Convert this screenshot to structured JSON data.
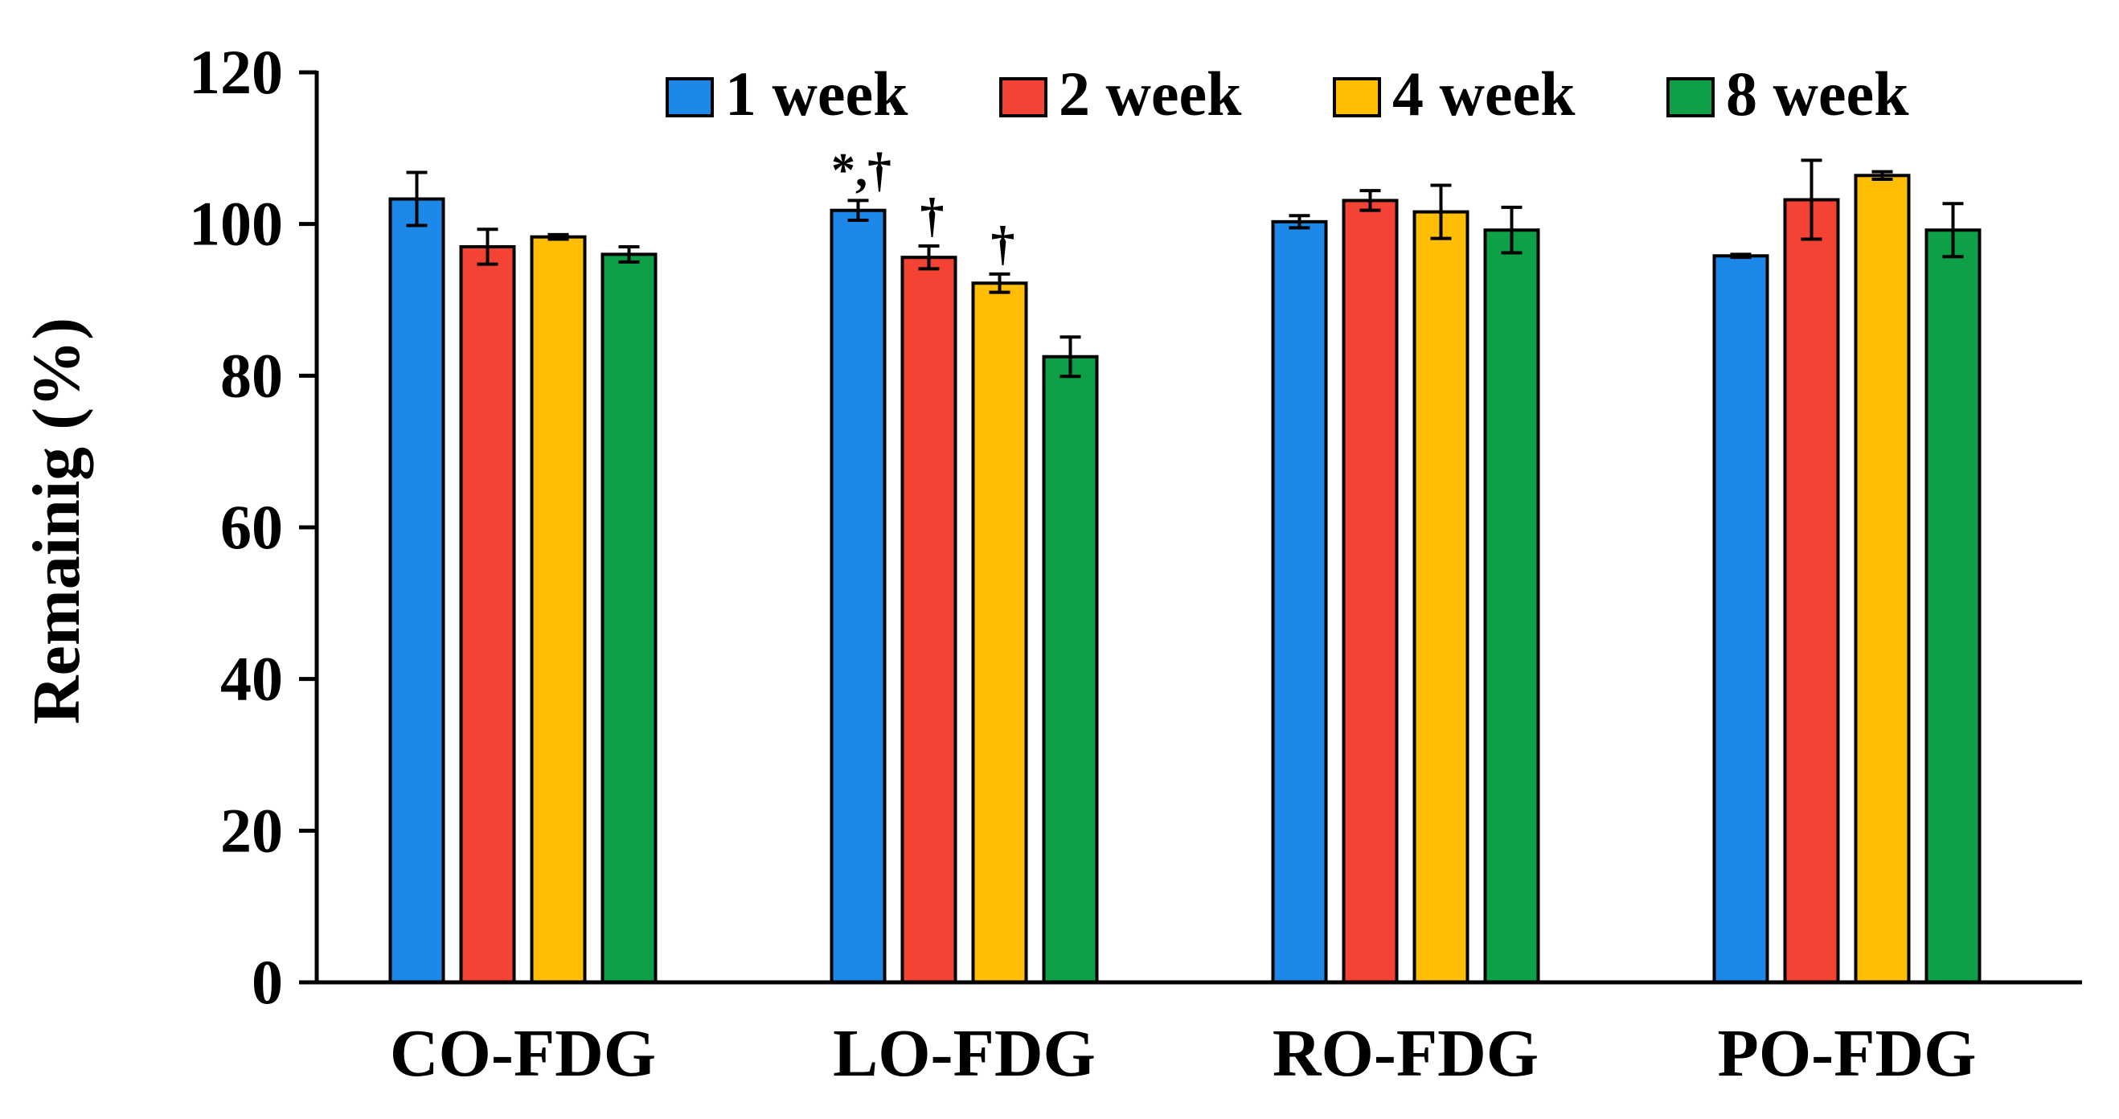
{
  "chart_data": {
    "type": "bar",
    "title": "",
    "xlabel": "",
    "ylabel": "Remainig (%)",
    "ylim": [
      0,
      120
    ],
    "yticks": [
      0,
      20,
      40,
      60,
      80,
      100,
      120
    ],
    "grid": false,
    "legend_position": "top-right",
    "categories": [
      "CO-FDG",
      "LO-FDG",
      "RO-FDG",
      "PO-FDG"
    ],
    "series": [
      {
        "name": "1 week",
        "color": "#1E88E8",
        "values": [
          103.3,
          101.8,
          100.3,
          95.8
        ],
        "errors": [
          3.5,
          1.3,
          0.8,
          0.2
        ]
      },
      {
        "name": "2 week",
        "color": "#F44235",
        "values": [
          97.0,
          95.6,
          103.1,
          103.2
        ],
        "errors": [
          2.3,
          1.5,
          1.3,
          5.2
        ]
      },
      {
        "name": "4 week",
        "color": "#FFBD03",
        "values": [
          98.3,
          92.2,
          101.6,
          106.4
        ],
        "errors": [
          0.3,
          1.2,
          3.5,
          0.5
        ]
      },
      {
        "name": "8 week",
        "color": "#0EA047",
        "values": [
          96.0,
          82.5,
          99.2,
          99.2
        ],
        "errors": [
          1.0,
          2.6,
          3.0,
          3.5
        ]
      }
    ],
    "annotations": [
      {
        "category": "LO-FDG",
        "series": "1 week",
        "text": "*,†"
      },
      {
        "category": "LO-FDG",
        "series": "2 week",
        "text": "†"
      },
      {
        "category": "LO-FDG",
        "series": "4 week",
        "text": "†"
      }
    ]
  }
}
